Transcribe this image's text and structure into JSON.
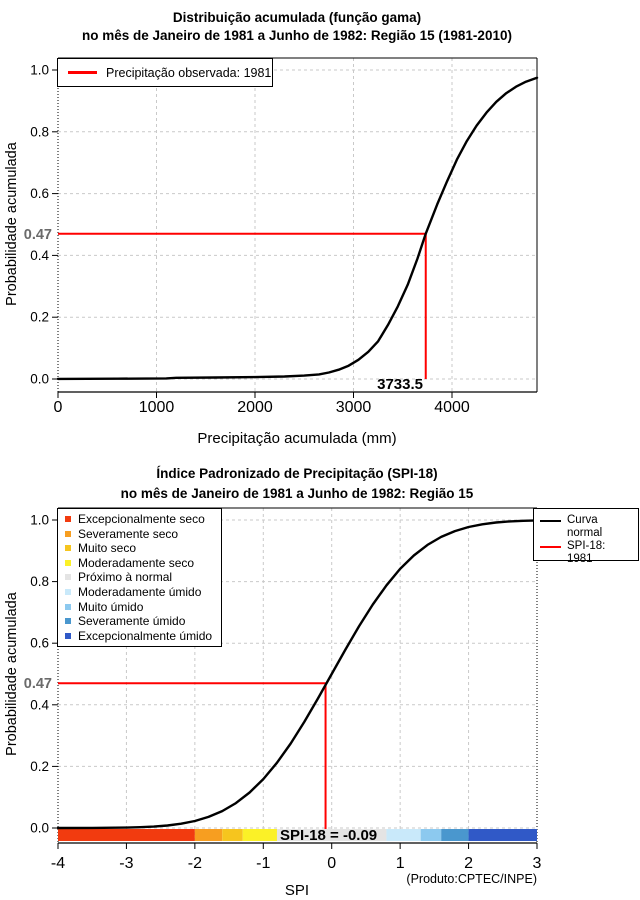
{
  "colors": {
    "accent_red": "#FF0000",
    "curve_black": "#000000",
    "grid_gray": "#C9C9C9",
    "annotation_gray": "#6B6B6B",
    "background": "#FFFFFF"
  },
  "chart_data": [
    {
      "type": "line",
      "title": "Distribuição acumulada (função gama)",
      "subtitle": "no mês de Janeiro de 1981 a Junho de 1982: Região 15 (1981-2010)",
      "xlabel": "Precipitação acumulada (mm)",
      "ylabel": "Probabilidade acumulada",
      "xlim": [
        0,
        4863
      ],
      "ylim": [
        0,
        1
      ],
      "xticks": [
        0,
        1000,
        2000,
        3000,
        4000
      ],
      "ytick_labels": [
        "0.0",
        "0.2",
        "0.4",
        "0.6",
        "0.8",
        "1.0"
      ],
      "grid": true,
      "legend": {
        "position": "top-left",
        "items": [
          {
            "label": "Precipitação observada: 1981",
            "color": "#FF0000"
          }
        ]
      },
      "series": [
        {
          "name": "Distribuição gama acumulada",
          "color": "#000000",
          "points": [
            [
              0,
              0.0003
            ],
            [
              600,
              0.001
            ],
            [
              1100,
              0.002
            ],
            [
              1200,
              0.004
            ],
            [
              1600,
              0.005
            ],
            [
              2000,
              0.006
            ],
            [
              2300,
              0.008
            ],
            [
              2500,
              0.011
            ],
            [
              2650,
              0.015
            ],
            [
              2750,
              0.021
            ],
            [
              2850,
              0.03
            ],
            [
              2950,
              0.043
            ],
            [
              3050,
              0.062
            ],
            [
              3150,
              0.088
            ],
            [
              3250,
              0.122
            ],
            [
              3350,
              0.175
            ],
            [
              3450,
              0.235
            ],
            [
              3550,
              0.305
            ],
            [
              3650,
              0.39
            ],
            [
              3733.5,
              0.47
            ],
            [
              3850,
              0.565
            ],
            [
              3950,
              0.64
            ],
            [
              4050,
              0.71
            ],
            [
              4150,
              0.77
            ],
            [
              4250,
              0.82
            ],
            [
              4350,
              0.862
            ],
            [
              4450,
              0.897
            ],
            [
              4550,
              0.925
            ],
            [
              4650,
              0.946
            ],
            [
              4750,
              0.962
            ],
            [
              4863,
              0.975
            ]
          ]
        }
      ],
      "annotation": {
        "x": 3733.5,
        "x_label": "3733.5",
        "probability": 0.47,
        "probability_label": "0.47",
        "color": "#FF0000"
      }
    },
    {
      "type": "line",
      "title": "Índice Padronizado de Precipitação (SPI-18)",
      "subtitle": "no mês de Janeiro de 1981 a Junho de 1982: Região 15",
      "xlabel": "SPI",
      "ylabel": "Probabilidade acumulada",
      "credit": "(Produto:CPTEC/INPE)",
      "xlim": [
        -4,
        3
      ],
      "ylim": [
        0,
        1
      ],
      "xticks": [
        -4,
        -3,
        -2,
        -1,
        0,
        1,
        2,
        3
      ],
      "ytick_labels": [
        "0.0",
        "0.2",
        "0.4",
        "0.6",
        "0.8",
        "1.0"
      ],
      "grid": true,
      "spi_legend": {
        "position": "top-left",
        "items": [
          {
            "label": "Excepcionalmente seco",
            "color": "#F23B0F"
          },
          {
            "label": "Severamente seco",
            "color": "#F79E20"
          },
          {
            "label": "Muito seco",
            "color": "#F6C51E"
          },
          {
            "label": "Moderadamente seco",
            "color": "#FBF127"
          },
          {
            "label": "Próximo à normal",
            "color": "#E4E4E4"
          },
          {
            "label": "Moderadamente úmido",
            "color": "#C9E9FA"
          },
          {
            "label": "Muito úmido",
            "color": "#8CC9EF"
          },
          {
            "label": "Severamente úmido",
            "color": "#4A97CE"
          },
          {
            "label": "Excepcionalmente úmido",
            "color": "#3059C7"
          }
        ]
      },
      "line_legend": {
        "position": "top-right",
        "items": [
          {
            "label": "Curva\nnormal",
            "color": "#000000"
          },
          {
            "label": "SPI-18: 1981",
            "color": "#FF0000"
          }
        ]
      },
      "category_bar": [
        {
          "from": -4,
          "to": -2,
          "color": "#F23B0F"
        },
        {
          "from": -2,
          "to": -1.6,
          "color": "#F79E20"
        },
        {
          "from": -1.6,
          "to": -1.3,
          "color": "#F6C51E"
        },
        {
          "from": -1.3,
          "to": -0.8,
          "color": "#FBF127"
        },
        {
          "from": -0.8,
          "to": 0.8,
          "color": "#E4E4E4"
        },
        {
          "from": 0.8,
          "to": 1.3,
          "color": "#C9E9FA"
        },
        {
          "from": 1.3,
          "to": 1.6,
          "color": "#8CC9EF"
        },
        {
          "from": 1.6,
          "to": 2,
          "color": "#4A97CE"
        },
        {
          "from": 2,
          "to": 3,
          "color": "#3059C7"
        }
      ],
      "series": [
        {
          "name": "Curva normal",
          "color": "#000000",
          "points": [
            [
              -4,
              3e-05
            ],
            [
              -3.5,
              0.00023
            ],
            [
              -3,
              0.00135
            ],
            [
              -2.8,
              0.0026
            ],
            [
              -2.6,
              0.0047
            ],
            [
              -2.4,
              0.0082
            ],
            [
              -2.2,
              0.0139
            ],
            [
              -2,
              0.0228
            ],
            [
              -1.8,
              0.0359
            ],
            [
              -1.6,
              0.0548
            ],
            [
              -1.4,
              0.0808
            ],
            [
              -1.2,
              0.1151
            ],
            [
              -1,
              0.1587
            ],
            [
              -0.8,
              0.2119
            ],
            [
              -0.6,
              0.2743
            ],
            [
              -0.4,
              0.3446
            ],
            [
              -0.2,
              0.4207
            ],
            [
              0,
              0.5
            ],
            [
              0.2,
              0.5793
            ],
            [
              0.4,
              0.6554
            ],
            [
              0.6,
              0.7257
            ],
            [
              0.8,
              0.7881
            ],
            [
              1,
              0.8413
            ],
            [
              1.2,
              0.8849
            ],
            [
              1.4,
              0.9192
            ],
            [
              1.6,
              0.9452
            ],
            [
              1.8,
              0.9641
            ],
            [
              2,
              0.9772
            ],
            [
              2.2,
              0.9861
            ],
            [
              2.4,
              0.9918
            ],
            [
              2.6,
              0.9953
            ],
            [
              2.8,
              0.9974
            ],
            [
              3,
              0.9987
            ]
          ]
        }
      ],
      "annotation": {
        "x": -0.09,
        "label": "SPI-18 = -0.09",
        "probability": 0.47,
        "probability_label": "0.47",
        "color": "#FF0000"
      }
    }
  ]
}
